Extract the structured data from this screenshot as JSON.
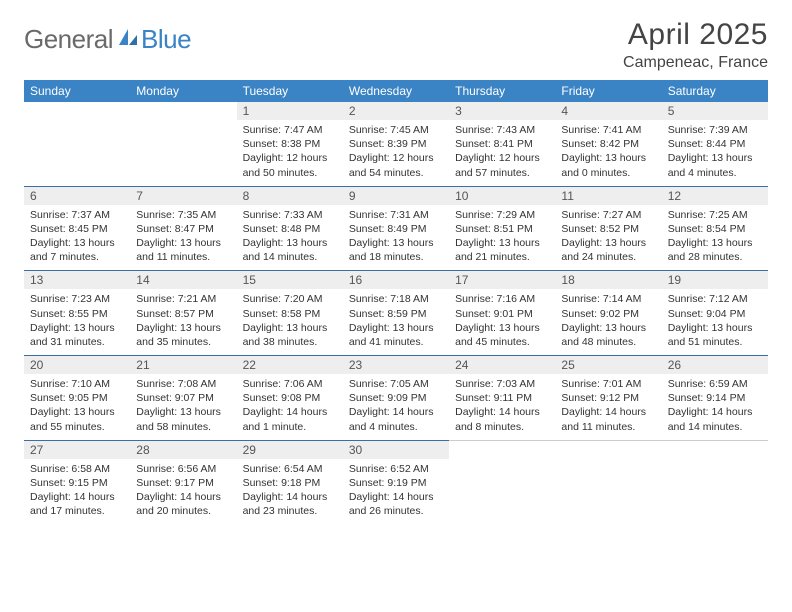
{
  "brand": {
    "part1": "General",
    "part2": "Blue"
  },
  "title": "April 2025",
  "location": "Campeneac, France",
  "colors": {
    "header_bg": "#3a83c4",
    "header_text": "#ffffff",
    "daynum_bg": "#eeeeee",
    "week_border": "#3a6ea5",
    "text": "#333333",
    "logo_gray": "#6a6a6a",
    "logo_blue": "#3a83c4"
  },
  "weekdays": [
    "Sunday",
    "Monday",
    "Tuesday",
    "Wednesday",
    "Thursday",
    "Friday",
    "Saturday"
  ],
  "weeks": [
    [
      null,
      null,
      {
        "n": "1",
        "sr": "Sunrise: 7:47 AM",
        "ss": "Sunset: 8:38 PM",
        "d1": "Daylight: 12 hours",
        "d2": "and 50 minutes."
      },
      {
        "n": "2",
        "sr": "Sunrise: 7:45 AM",
        "ss": "Sunset: 8:39 PM",
        "d1": "Daylight: 12 hours",
        "d2": "and 54 minutes."
      },
      {
        "n": "3",
        "sr": "Sunrise: 7:43 AM",
        "ss": "Sunset: 8:41 PM",
        "d1": "Daylight: 12 hours",
        "d2": "and 57 minutes."
      },
      {
        "n": "4",
        "sr": "Sunrise: 7:41 AM",
        "ss": "Sunset: 8:42 PM",
        "d1": "Daylight: 13 hours",
        "d2": "and 0 minutes."
      },
      {
        "n": "5",
        "sr": "Sunrise: 7:39 AM",
        "ss": "Sunset: 8:44 PM",
        "d1": "Daylight: 13 hours",
        "d2": "and 4 minutes."
      }
    ],
    [
      {
        "n": "6",
        "sr": "Sunrise: 7:37 AM",
        "ss": "Sunset: 8:45 PM",
        "d1": "Daylight: 13 hours",
        "d2": "and 7 minutes."
      },
      {
        "n": "7",
        "sr": "Sunrise: 7:35 AM",
        "ss": "Sunset: 8:47 PM",
        "d1": "Daylight: 13 hours",
        "d2": "and 11 minutes."
      },
      {
        "n": "8",
        "sr": "Sunrise: 7:33 AM",
        "ss": "Sunset: 8:48 PM",
        "d1": "Daylight: 13 hours",
        "d2": "and 14 minutes."
      },
      {
        "n": "9",
        "sr": "Sunrise: 7:31 AM",
        "ss": "Sunset: 8:49 PM",
        "d1": "Daylight: 13 hours",
        "d2": "and 18 minutes."
      },
      {
        "n": "10",
        "sr": "Sunrise: 7:29 AM",
        "ss": "Sunset: 8:51 PM",
        "d1": "Daylight: 13 hours",
        "d2": "and 21 minutes."
      },
      {
        "n": "11",
        "sr": "Sunrise: 7:27 AM",
        "ss": "Sunset: 8:52 PM",
        "d1": "Daylight: 13 hours",
        "d2": "and 24 minutes."
      },
      {
        "n": "12",
        "sr": "Sunrise: 7:25 AM",
        "ss": "Sunset: 8:54 PM",
        "d1": "Daylight: 13 hours",
        "d2": "and 28 minutes."
      }
    ],
    [
      {
        "n": "13",
        "sr": "Sunrise: 7:23 AM",
        "ss": "Sunset: 8:55 PM",
        "d1": "Daylight: 13 hours",
        "d2": "and 31 minutes."
      },
      {
        "n": "14",
        "sr": "Sunrise: 7:21 AM",
        "ss": "Sunset: 8:57 PM",
        "d1": "Daylight: 13 hours",
        "d2": "and 35 minutes."
      },
      {
        "n": "15",
        "sr": "Sunrise: 7:20 AM",
        "ss": "Sunset: 8:58 PM",
        "d1": "Daylight: 13 hours",
        "d2": "and 38 minutes."
      },
      {
        "n": "16",
        "sr": "Sunrise: 7:18 AM",
        "ss": "Sunset: 8:59 PM",
        "d1": "Daylight: 13 hours",
        "d2": "and 41 minutes."
      },
      {
        "n": "17",
        "sr": "Sunrise: 7:16 AM",
        "ss": "Sunset: 9:01 PM",
        "d1": "Daylight: 13 hours",
        "d2": "and 45 minutes."
      },
      {
        "n": "18",
        "sr": "Sunrise: 7:14 AM",
        "ss": "Sunset: 9:02 PM",
        "d1": "Daylight: 13 hours",
        "d2": "and 48 minutes."
      },
      {
        "n": "19",
        "sr": "Sunrise: 7:12 AM",
        "ss": "Sunset: 9:04 PM",
        "d1": "Daylight: 13 hours",
        "d2": "and 51 minutes."
      }
    ],
    [
      {
        "n": "20",
        "sr": "Sunrise: 7:10 AM",
        "ss": "Sunset: 9:05 PM",
        "d1": "Daylight: 13 hours",
        "d2": "and 55 minutes."
      },
      {
        "n": "21",
        "sr": "Sunrise: 7:08 AM",
        "ss": "Sunset: 9:07 PM",
        "d1": "Daylight: 13 hours",
        "d2": "and 58 minutes."
      },
      {
        "n": "22",
        "sr": "Sunrise: 7:06 AM",
        "ss": "Sunset: 9:08 PM",
        "d1": "Daylight: 14 hours",
        "d2": "and 1 minute."
      },
      {
        "n": "23",
        "sr": "Sunrise: 7:05 AM",
        "ss": "Sunset: 9:09 PM",
        "d1": "Daylight: 14 hours",
        "d2": "and 4 minutes."
      },
      {
        "n": "24",
        "sr": "Sunrise: 7:03 AM",
        "ss": "Sunset: 9:11 PM",
        "d1": "Daylight: 14 hours",
        "d2": "and 8 minutes."
      },
      {
        "n": "25",
        "sr": "Sunrise: 7:01 AM",
        "ss": "Sunset: 9:12 PM",
        "d1": "Daylight: 14 hours",
        "d2": "and 11 minutes."
      },
      {
        "n": "26",
        "sr": "Sunrise: 6:59 AM",
        "ss": "Sunset: 9:14 PM",
        "d1": "Daylight: 14 hours",
        "d2": "and 14 minutes."
      }
    ],
    [
      {
        "n": "27",
        "sr": "Sunrise: 6:58 AM",
        "ss": "Sunset: 9:15 PM",
        "d1": "Daylight: 14 hours",
        "d2": "and 17 minutes."
      },
      {
        "n": "28",
        "sr": "Sunrise: 6:56 AM",
        "ss": "Sunset: 9:17 PM",
        "d1": "Daylight: 14 hours",
        "d2": "and 20 minutes."
      },
      {
        "n": "29",
        "sr": "Sunrise: 6:54 AM",
        "ss": "Sunset: 9:18 PM",
        "d1": "Daylight: 14 hours",
        "d2": "and 23 minutes."
      },
      {
        "n": "30",
        "sr": "Sunrise: 6:52 AM",
        "ss": "Sunset: 9:19 PM",
        "d1": "Daylight: 14 hours",
        "d2": "and 26 minutes."
      },
      null,
      null,
      null
    ]
  ]
}
